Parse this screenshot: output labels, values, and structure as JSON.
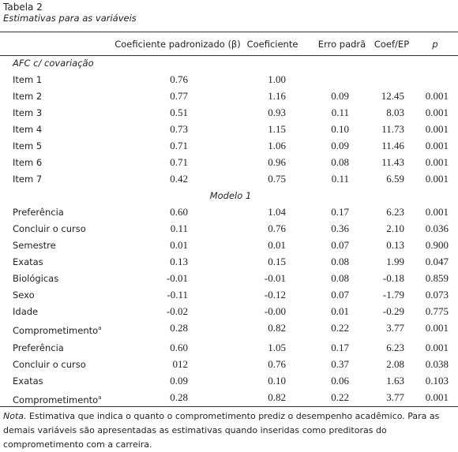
{
  "title": "Tabela 2",
  "subtitle": "Estimativas para as variáveis",
  "table": {
    "header": [
      "Coeficiente padronizado (β)",
      "Coeficiente",
      "Erro padrã",
      "Coef/EP",
      "p"
    ],
    "sections": [
      {
        "title": "AFC c/ covariação",
        "rows": [
          {
            "label": "Item 1",
            "values": [
              "0.76",
              "1.00"
            ]
          },
          {
            "label": "Item 2",
            "values": [
              "0.77",
              "1.16",
              "0.09",
              "12.45",
              "0.001"
            ]
          },
          {
            "label": "Item 3",
            "values": [
              "0.51",
              "0.93",
              "0.11",
              "8.03",
              "0.001"
            ]
          },
          {
            "label": "Item 4",
            "values": [
              "0.73",
              "1.15",
              "0.10",
              "11.73",
              "0.001"
            ]
          },
          {
            "label": "Item 5",
            "values": [
              "0.71",
              "1.06",
              "0.09",
              "11.46",
              "0.001"
            ]
          },
          {
            "label": "Item 6",
            "values": [
              "0.71",
              "0.96",
              "0.08",
              "11.43",
              "0.001"
            ]
          },
          {
            "label": "Item 7",
            "values": [
              "0.42",
              "0.75",
              "0.11",
              "6.59",
              "0.001"
            ]
          }
        ]
      },
      {
        "title": "Modelo 1",
        "rows": [
          {
            "label": "Preferência",
            "values": [
              "0.60",
              "1.04",
              "0.17",
              "6.23",
              "0.001"
            ]
          },
          {
            "label": "Concluir o curso",
            "values": [
              "0.11",
              "0.76",
              "0.36",
              "2.10",
              "0.036"
            ]
          },
          {
            "label": "Semestre",
            "values": [
              "0.01",
              "0.01",
              "0.07",
              "0.13",
              "0.900"
            ]
          },
          {
            "label": "Exatas",
            "values": [
              "0.13",
              "0.15",
              "0.08",
              "1.99",
              "0.047"
            ]
          },
          {
            "label": "Biológicas",
            "values": [
              "-0.01",
              "-0.01",
              "0.08",
              "-0.18",
              "0.859"
            ]
          },
          {
            "label": "Sexo",
            "values": [
              "-0.11",
              "-0.12",
              "0.07",
              "-1.79",
              "0.073"
            ]
          },
          {
            "label": "Idade",
            "values": [
              "-0.02",
              "-0.00",
              "0.01",
              "-0.29",
              "0.775"
            ]
          },
          {
            "label": "Comprometimento",
            "mark": "a",
            "values": [
              "0.28",
              "0.82",
              "0.22",
              "3.77",
              "0.001"
            ]
          }
        ]
      },
      {
        "rows": [
          {
            "label": "Preferência",
            "values": [
              "0.60",
              "1.05",
              "0.17",
              "6.23",
              "0.001"
            ]
          },
          {
            "label": "Concluir o curso",
            "values": [
              "012",
              "0.76",
              "0.37",
              "2.08",
              "0.038"
            ]
          },
          {
            "label": "Exatas",
            "values": [
              "0.09",
              "0.10",
              "0.06",
              "1.63",
              "0.103"
            ]
          },
          {
            "label": "Comprometimento",
            "mark": "a",
            "values": [
              "0.28",
              "0.82",
              "0.22",
              "3.77",
              "0.001"
            ]
          }
        ]
      }
    ]
  },
  "note": {
    "lead": "Nota.",
    "text": " Estimativa que indica o quanto o comprometimento prediz o desempenho acadêmico. Para as demais variáveis são apresentadas as estimativas quando inseridas como preditoras do comprometimento com a carreira."
  }
}
